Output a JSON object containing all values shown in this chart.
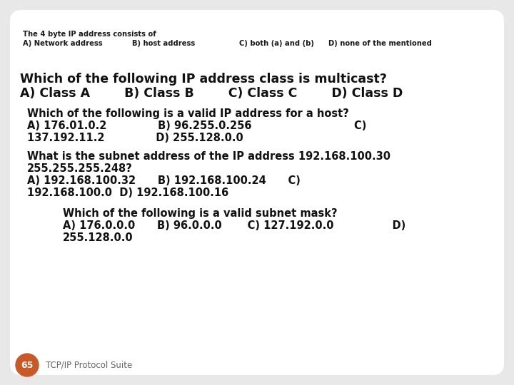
{
  "bg_color": "#e8e8e8",
  "card_color": "#ffffff",
  "title_line1": "The 4 byte IP address consists of",
  "title_line2_a": "A) Network address",
  "title_line2_b": "B) host address",
  "title_line2_c": "C) both (a) and (b)",
  "title_line2_d": "D) none of the mentioned",
  "q2_line1": "Which of the following IP address class is multicast?",
  "q2_line2": "A) Class A        B) Class B        C) Class C        D) Class D",
  "q3_line1": "Which of the following is a valid IP address for a host?",
  "q3_line2": "A) 176.01.0.2              B) 96.255.0.256                            C)",
  "q3_line3": "137.192.11.2              D) 255.128.0.0",
  "q4_line1": "What is the subnet address of the IP address 192.168.100.30",
  "q4_line2": "255.255.255.248?",
  "q4_line3": "A) 192.168.100.32      B) 192.168.100.24      C)",
  "q4_line4": "192.168.100.0  D) 192.168.100.16",
  "q5_line1": "Which of the following is a valid subnet mask?",
  "q5_line2": "A) 176.0.0.0      B) 96.0.0.0       C) 127.192.0.0                D)",
  "q5_line3": "255.128.0.0",
  "badge_color": "#c85a2a",
  "badge_text": "65",
  "footer_text": "TCP/IP Protocol Suite",
  "title_fs": 7.2,
  "q2_fs": 12.5,
  "q3_fs": 10.5,
  "q4_fs": 10.5,
  "q5_fs": 10.5,
  "footer_fs": 8.5
}
